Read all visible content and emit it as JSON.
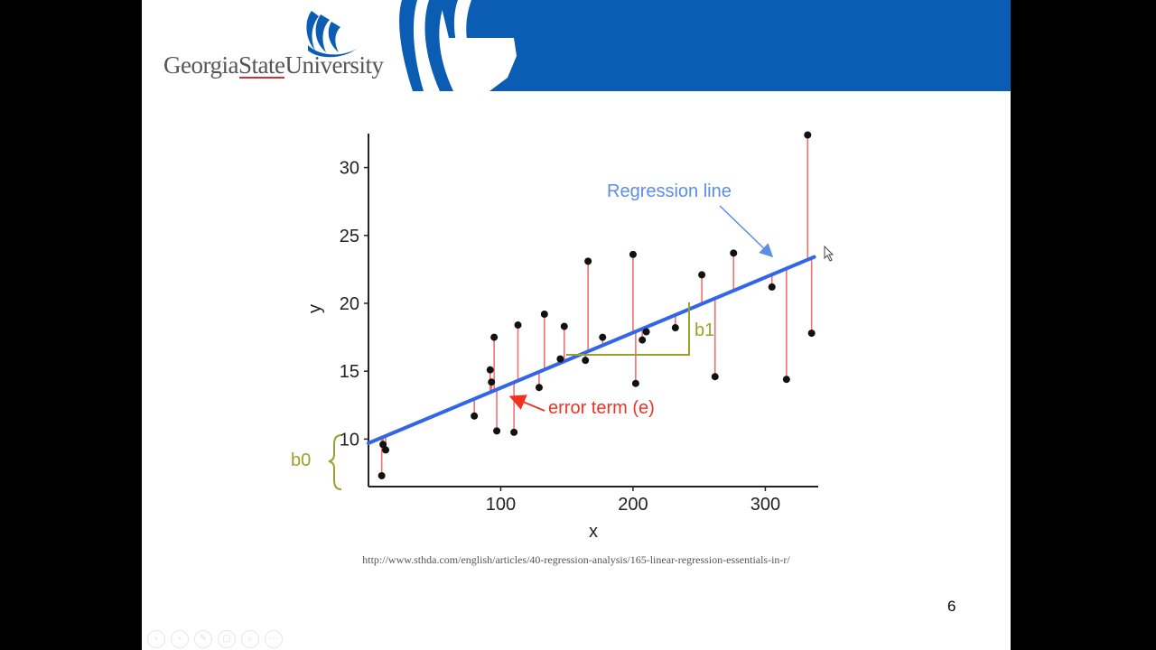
{
  "header": {
    "logo_text": "GeorgiaStateUniversity",
    "brand_color": "#0a5db3"
  },
  "chart_data": {
    "type": "scatter",
    "xlabel": "x",
    "ylabel": "y",
    "xlim": [
      0,
      340
    ],
    "ylim": [
      6.5,
      32.5
    ],
    "x_ticks": [
      100,
      200,
      300
    ],
    "y_ticks": [
      10,
      15,
      20,
      25,
      30
    ],
    "grid": false,
    "regression_line": {
      "intercept": 9.7,
      "slope": 0.0407,
      "color": "#3366e6",
      "label": "Regression line"
    },
    "residual_color": "#f07070",
    "points": [
      {
        "x": 10,
        "y": 7.3
      },
      {
        "x": 11,
        "y": 9.6
      },
      {
        "x": 13,
        "y": 9.2
      },
      {
        "x": 80,
        "y": 11.7
      },
      {
        "x": 92,
        "y": 15.1
      },
      {
        "x": 93,
        "y": 14.2
      },
      {
        "x": 95,
        "y": 17.5
      },
      {
        "x": 97,
        "y": 10.6
      },
      {
        "x": 110,
        "y": 10.5
      },
      {
        "x": 113,
        "y": 18.4
      },
      {
        "x": 129,
        "y": 13.8
      },
      {
        "x": 133,
        "y": 19.2
      },
      {
        "x": 145,
        "y": 15.9
      },
      {
        "x": 148,
        "y": 18.3
      },
      {
        "x": 164,
        "y": 15.8
      },
      {
        "x": 166,
        "y": 23.1
      },
      {
        "x": 177,
        "y": 17.5
      },
      {
        "x": 200,
        "y": 23.6
      },
      {
        "x": 202,
        "y": 14.1
      },
      {
        "x": 207,
        "y": 17.3
      },
      {
        "x": 210,
        "y": 17.9
      },
      {
        "x": 232,
        "y": 18.2
      },
      {
        "x": 252,
        "y": 22.1
      },
      {
        "x": 262,
        "y": 14.6
      },
      {
        "x": 276,
        "y": 23.7
      },
      {
        "x": 305,
        "y": 21.2
      },
      {
        "x": 316,
        "y": 14.4
      },
      {
        "x": 332,
        "y": 32.4
      },
      {
        "x": 335,
        "y": 17.8
      }
    ],
    "annotations": {
      "regression_line": "Regression line",
      "error_term": "error term (e)",
      "intercept": "b0",
      "slope": "b1"
    },
    "annotation_colors": {
      "regression": "#5b8ee6",
      "error": "#ee3322",
      "coef": "#9aa12a"
    }
  },
  "source": {
    "url_text": "http://www.sthda.com/english/articles/40-regression-analysis/165-linear-regression-essentials-in-r/"
  },
  "slide": {
    "number": "6"
  },
  "toolbar": {
    "buttons": [
      "‹",
      "›",
      "✎",
      "▢",
      "⌕",
      "⋯"
    ]
  }
}
